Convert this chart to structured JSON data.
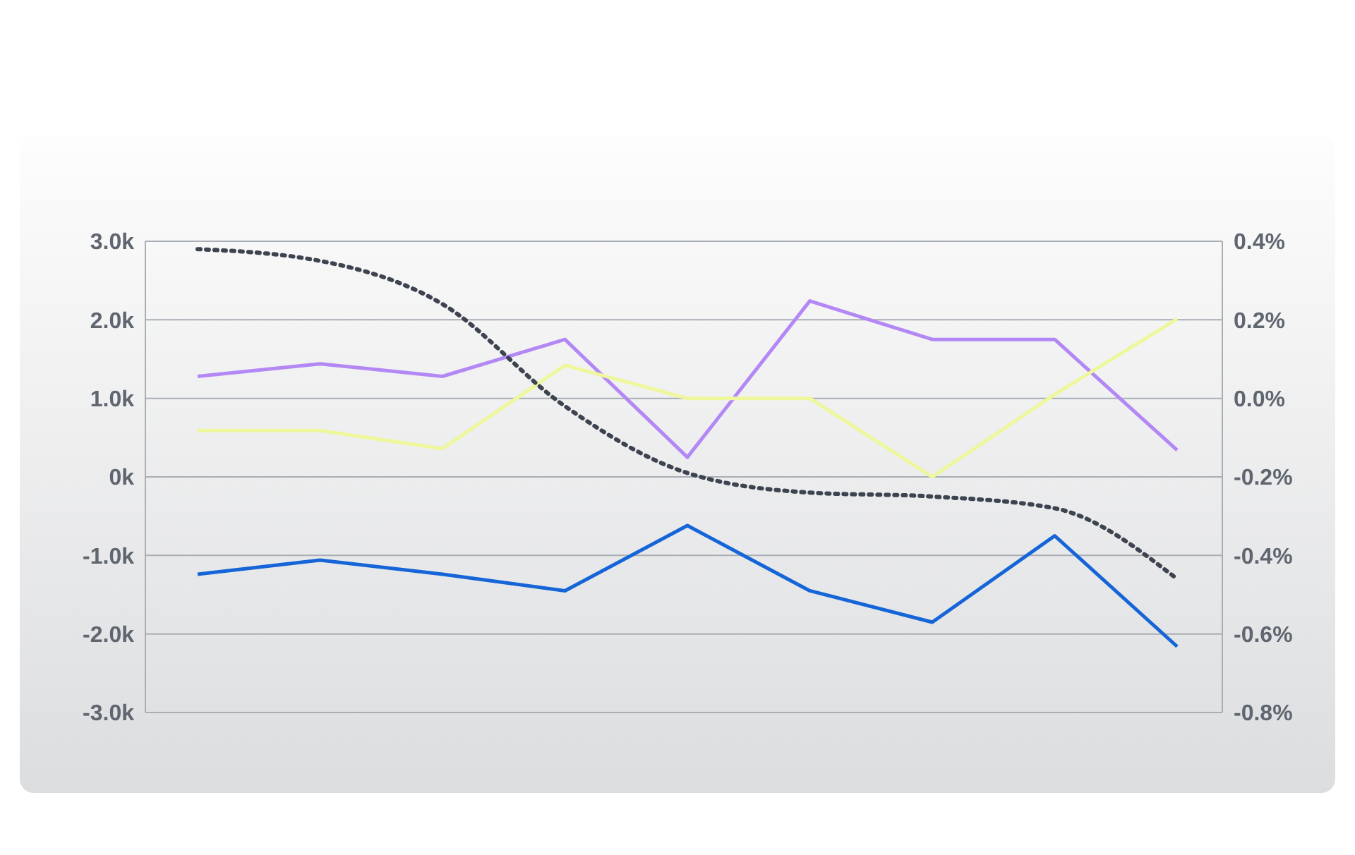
{
  "chart_data": {
    "type": "line",
    "categories": [
      null,
      null,
      null,
      null,
      null,
      null,
      null,
      null,
      null
    ],
    "series": [
      {
        "color": "#b388f5",
        "values": [
          1.28,
          1.44,
          1.28,
          1.75,
          0.25,
          2.24,
          1.75,
          1.75,
          0.34
        ]
      },
      {
        "color": "#eef79c",
        "values": [
          0.59,
          0.59,
          0.36,
          1.42,
          1.0,
          1.0,
          0.0,
          1.05,
          2.01
        ]
      },
      {
        "color": "#1565d8",
        "values": [
          -1.24,
          -1.06,
          -1.24,
          -1.45,
          -0.62,
          -1.45,
          -1.85,
          -0.75,
          -2.16
        ]
      },
      {
        "color": "#3d4450",
        "axis": "y2",
        "line_style": "dotted",
        "values": [
          0.38,
          0.35,
          0.24,
          -0.02,
          -0.19,
          -0.24,
          -0.25,
          -0.28,
          -0.46
        ]
      }
    ],
    "ylim": [
      -3,
      3
    ],
    "yticks": [
      {
        "value": -3,
        "label": "-3.0k"
      },
      {
        "value": -2,
        "label": "-2.0k"
      },
      {
        "value": -1,
        "label": "-1.0k"
      },
      {
        "value": 0,
        "label": "0k"
      },
      {
        "value": 1,
        "label": "1.0k"
      },
      {
        "value": 2,
        "label": "2.0k"
      },
      {
        "value": 3,
        "label": "3.0k"
      }
    ],
    "y2lim": [
      -0.8,
      0.4
    ],
    "y2ticks": [
      {
        "value": -0.8,
        "label": "-0.8%"
      },
      {
        "value": -0.6,
        "label": "-0.6%"
      },
      {
        "value": -0.4,
        "label": "-0.4%"
      },
      {
        "value": -0.2,
        "label": "-0.2%"
      },
      {
        "value": 0,
        "label": "0.0%"
      },
      {
        "value": 0.2,
        "label": "0.2%"
      },
      {
        "value": 0.4,
        "label": "0.4%"
      }
    ],
    "grid": true,
    "legend": false,
    "marker": "none",
    "line_style": "solid",
    "tick_labels": "y"
  }
}
